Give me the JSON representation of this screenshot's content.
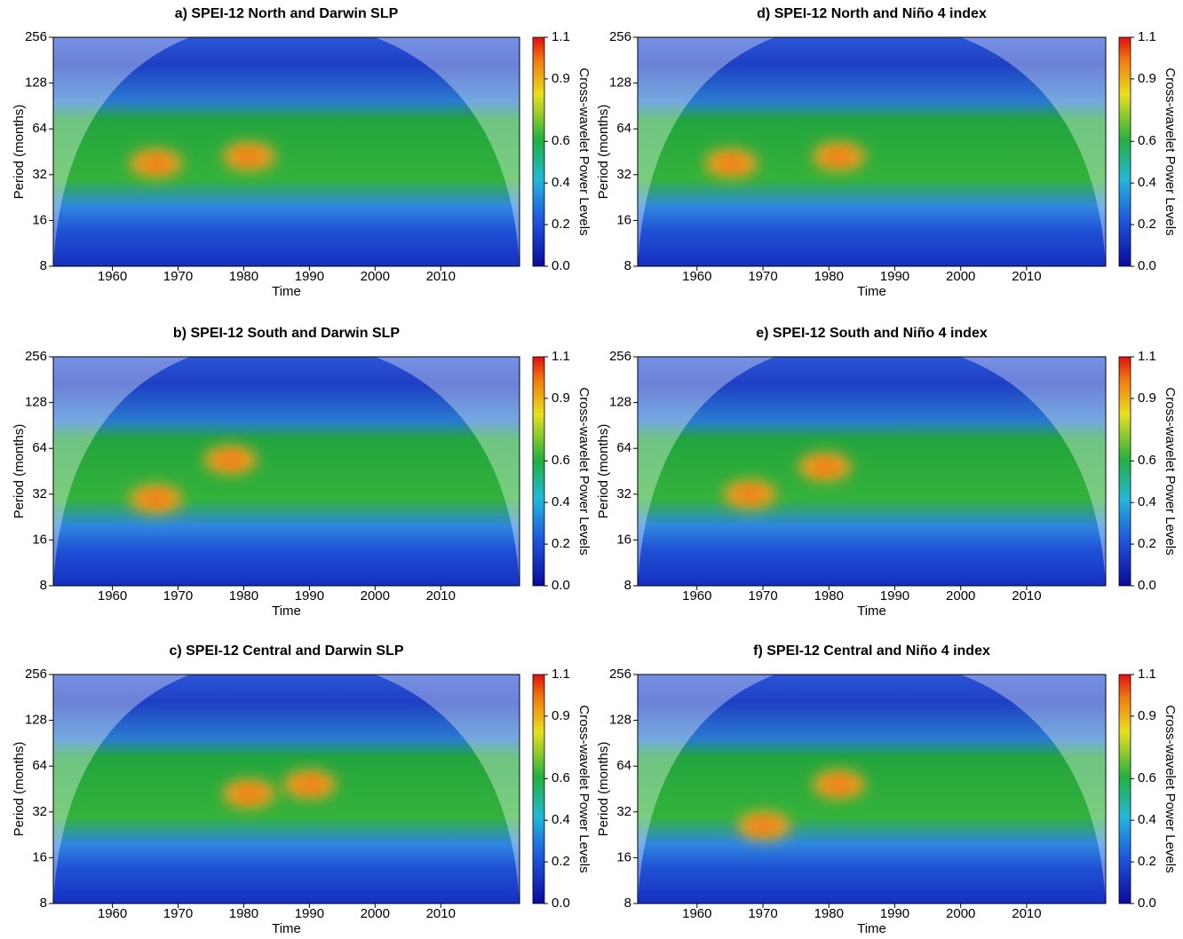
{
  "chart_data": [
    {
      "type": "heatmap",
      "title": "a) SPEI-12 North and Darwin SLP",
      "xlabel": "Time",
      "ylabel": "Period (months)",
      "xlim": [
        1951,
        2022
      ],
      "xticks": [
        1960,
        1970,
        1980,
        1990,
        2000,
        2010
      ],
      "ylim": [
        8,
        256
      ],
      "yticks": [
        8,
        16,
        32,
        64,
        128,
        256
      ],
      "yscale": "log2",
      "colorbar": {
        "label": "Cross-wavelet Power Levels",
        "lim": [
          0,
          1.1
        ],
        "ticks": [
          {
            "value": 0,
            "label": "0.0"
          },
          0.2,
          0.4,
          0.6,
          0.9,
          1.1
        ]
      }
    },
    {
      "type": "heatmap",
      "title": "b) SPEI-12 South and Darwin SLP",
      "xlabel": "Time",
      "ylabel": "Period (months)",
      "xlim": [
        1951,
        2022
      ],
      "xticks": [
        1960,
        1970,
        1980,
        1990,
        2000,
        2010
      ],
      "ylim": [
        8,
        256
      ],
      "yticks": [
        8,
        16,
        32,
        64,
        128,
        256
      ],
      "yscale": "log2",
      "colorbar": {
        "label": "Cross-wavelet Power Levels",
        "lim": [
          0,
          1.1
        ],
        "ticks": [
          {
            "value": 0,
            "label": "0.0"
          },
          0.2,
          0.4,
          0.6,
          0.9,
          1.1
        ]
      }
    },
    {
      "type": "heatmap",
      "title": "c) SPEI-12 Central and Darwin SLP",
      "xlabel": "Time",
      "ylabel": "Period (months)",
      "xlim": [
        1951,
        2022
      ],
      "xticks": [
        1960,
        1970,
        1980,
        1990,
        2000,
        2010
      ],
      "ylim": [
        8,
        256
      ],
      "yticks": [
        8,
        16,
        32,
        64,
        128,
        256
      ],
      "yscale": "log2",
      "colorbar": {
        "label": "Cross-wavelet Power Levels",
        "lim": [
          0,
          1.1
        ],
        "ticks": [
          {
            "value": 0,
            "label": "0.0"
          },
          0.2,
          0.4,
          0.6,
          0.9,
          1.1
        ]
      }
    },
    {
      "type": "heatmap",
      "title": "d) SPEI-12 North and Niño 4 index",
      "xlabel": "Time",
      "ylabel": "Period (months)",
      "xlim": [
        1951,
        2022
      ],
      "xticks": [
        1960,
        1970,
        1980,
        1990,
        2000,
        2010
      ],
      "ylim": [
        8,
        256
      ],
      "yticks": [
        8,
        16,
        32,
        64,
        128,
        256
      ],
      "yscale": "log2",
      "colorbar": {
        "label": "Cross-wavelet Power Levels",
        "lim": [
          0,
          1.1
        ],
        "ticks": [
          {
            "value": 0,
            "label": "0.0"
          },
          0.2,
          0.4,
          0.6,
          0.9,
          1.1
        ]
      }
    },
    {
      "type": "heatmap",
      "title": "e) SPEI-12 South and Niño 4 index",
      "xlabel": "Time",
      "ylabel": "Period (months)",
      "xlim": [
        1951,
        2022
      ],
      "xticks": [
        1960,
        1970,
        1980,
        1990,
        2000,
        2010
      ],
      "ylim": [
        8,
        256
      ],
      "yticks": [
        8,
        16,
        32,
        64,
        128,
        256
      ],
      "yscale": "log2",
      "colorbar": {
        "label": "Cross-wavelet Power Levels",
        "lim": [
          0,
          1.1
        ],
        "ticks": [
          {
            "value": 0,
            "label": "0.0"
          },
          0.2,
          0.4,
          0.6,
          0.9,
          1.1
        ]
      }
    },
    {
      "type": "heatmap",
      "title": "f) SPEI-12 Central and Niño 4 index",
      "xlabel": "Time",
      "ylabel": "Period (months)",
      "xlim": [
        1951,
        2022
      ],
      "xticks": [
        1960,
        1970,
        1980,
        1990,
        2000,
        2010
      ],
      "ylim": [
        8,
        256
      ],
      "yticks": [
        8,
        16,
        32,
        64,
        128,
        256
      ],
      "yscale": "log2",
      "colorbar": {
        "label": "Cross-wavelet Power Levels",
        "lim": [
          0,
          1.1
        ],
        "ticks": [
          {
            "value": 0,
            "label": "0.0"
          },
          0.2,
          0.4,
          0.6,
          0.9,
          1.1
        ]
      }
    }
  ]
}
